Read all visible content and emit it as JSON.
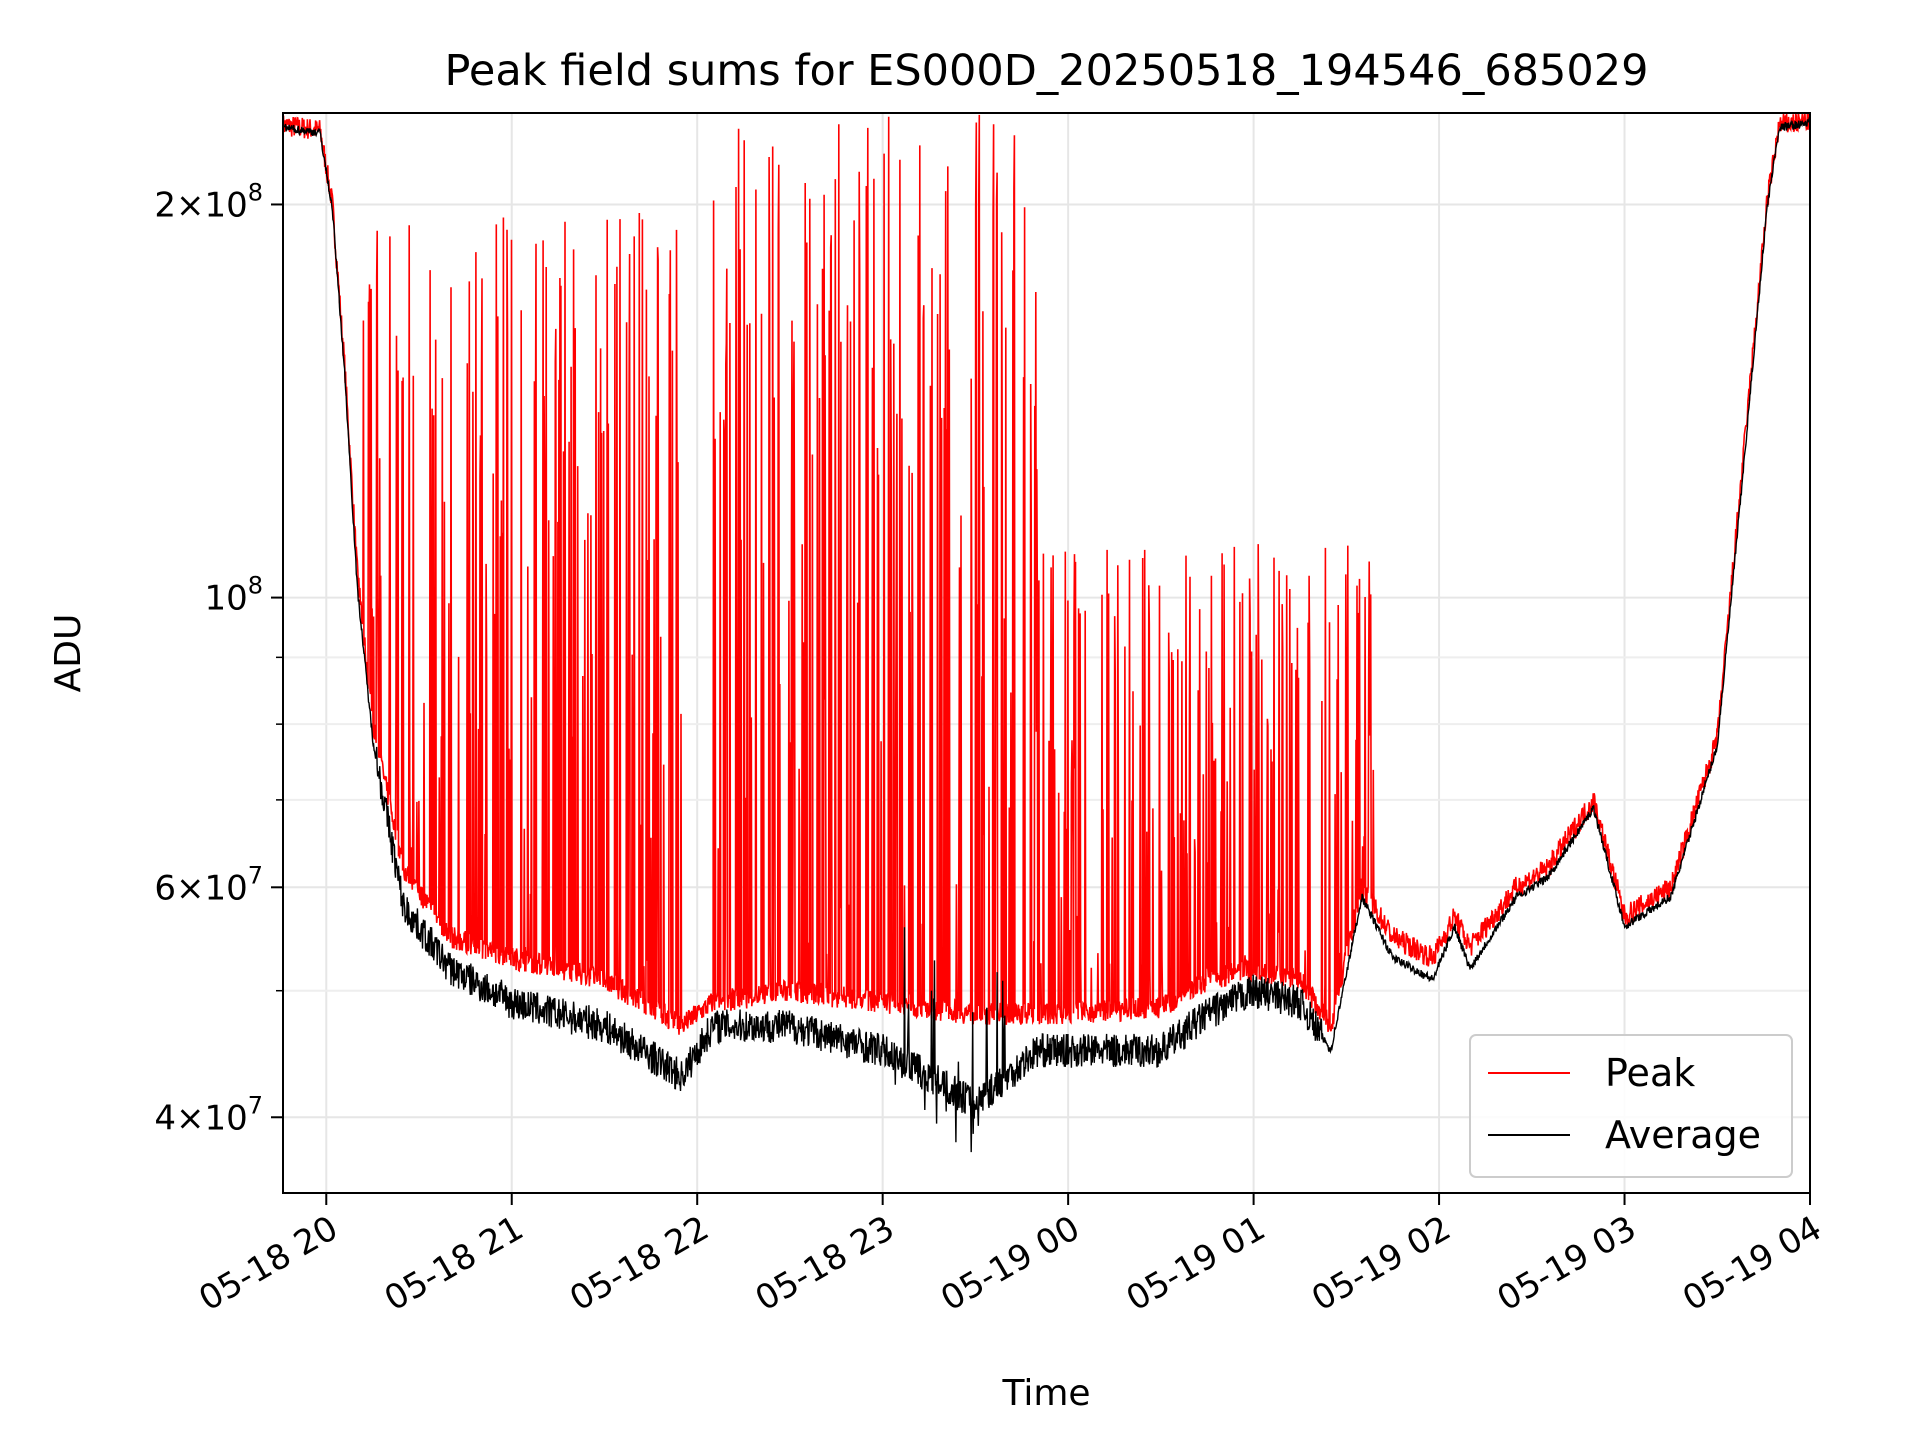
{
  "chart_data": {
    "type": "line",
    "title": "Peak field sums for ES000D_20250518_194546_685029",
    "xlabel": "Time",
    "ylabel": "ADU",
    "y_scale": "log",
    "ylim": [
      35000000,
      235000000
    ],
    "xlim": [
      "2025-05-18 19:46",
      "2025-05-19 04:00"
    ],
    "grid": true,
    "legend_position": "lower-right",
    "x_ticks": [
      "05-18 20",
      "05-18 21",
      "05-18 22",
      "05-18 23",
      "05-19 00",
      "05-19 01",
      "05-19 02",
      "05-19 03",
      "05-19 04"
    ],
    "y_tick_labels": [
      {
        "value": 40000000,
        "mantissa": "4",
        "exponent": "7"
      },
      {
        "value": 60000000,
        "mantissa": "6",
        "exponent": "7"
      },
      {
        "value": 100000000,
        "mantissa": "",
        "exponent": "8"
      },
      {
        "value": 200000000,
        "mantissa": "2",
        "exponent": "8"
      }
    ],
    "series": [
      {
        "name": "Peak",
        "color": "#ff0000",
        "baseline": [
          [
            "2025-05-18 19:46",
            230000000
          ],
          [
            "2025-05-18 19:58",
            228000000
          ],
          [
            "2025-05-18 20:02",
            200000000
          ],
          [
            "2025-05-18 20:06",
            150000000
          ],
          [
            "2025-05-18 20:10",
            105000000
          ],
          [
            "2025-05-18 20:15",
            80000000
          ],
          [
            "2025-05-18 20:25",
            62000000
          ],
          [
            "2025-05-18 20:40",
            55000000
          ],
          [
            "2025-05-18 21:00",
            53000000
          ],
          [
            "2025-05-18 21:30",
            51000000
          ],
          [
            "2025-05-18 21:55",
            47000000
          ],
          [
            "2025-05-18 22:05",
            49000000
          ],
          [
            "2025-05-18 22:30",
            50000000
          ],
          [
            "2025-05-18 23:00",
            49000000
          ],
          [
            "2025-05-18 23:30",
            48000000
          ],
          [
            "2025-05-18 23:50",
            48000000
          ],
          [
            "2025-05-19 00:30",
            48500000
          ],
          [
            "2025-05-19 00:45",
            51000000
          ],
          [
            "2025-05-19 01:00",
            52000000
          ],
          [
            "2025-05-19 01:15",
            51000000
          ],
          [
            "2025-05-19 01:25",
            47000000
          ],
          [
            "2025-05-19 01:35",
            60000000
          ],
          [
            "2025-05-19 01:45",
            55000000
          ],
          [
            "2025-05-19 01:58",
            53000000
          ],
          [
            "2025-05-19 02:05",
            57000000
          ],
          [
            "2025-05-19 02:10",
            54000000
          ],
          [
            "2025-05-19 02:25",
            60000000
          ],
          [
            "2025-05-19 02:35",
            62000000
          ],
          [
            "2025-05-19 02:50",
            70000000
          ],
          [
            "2025-05-19 03:00",
            57000000
          ],
          [
            "2025-05-19 03:15",
            60000000
          ],
          [
            "2025-05-19 03:30",
            78000000
          ],
          [
            "2025-05-19 03:38",
            125000000
          ],
          [
            "2025-05-19 03:46",
            200000000
          ],
          [
            "2025-05-19 03:50",
            230000000
          ],
          [
            "2025-05-19 04:00",
            232000000
          ]
        ],
        "spike_windows": [
          {
            "start": "2025-05-18 20:10",
            "end": "2025-05-18 21:55",
            "max": 200000000
          },
          {
            "start": "2025-05-18 22:05",
            "end": "2025-05-18 23:50",
            "max": 235000000
          },
          {
            "start": "2025-05-18 23:50",
            "end": "2025-05-19 01:40",
            "max": 110000000
          }
        ]
      },
      {
        "name": "Average",
        "color": "#000000",
        "baseline": [
          [
            "2025-05-18 19:46",
            229000000
          ],
          [
            "2025-05-18 19:58",
            227000000
          ],
          [
            "2025-05-18 20:02",
            198000000
          ],
          [
            "2025-05-18 20:06",
            148000000
          ],
          [
            "2025-05-18 20:10",
            102000000
          ],
          [
            "2025-05-18 20:15",
            78000000
          ],
          [
            "2025-05-18 20:25",
            58000000
          ],
          [
            "2025-05-18 20:40",
            52000000
          ],
          [
            "2025-05-18 21:00",
            49000000
          ],
          [
            "2025-05-18 21:30",
            47000000
          ],
          [
            "2025-05-18 21:55",
            43000000
          ],
          [
            "2025-05-18 22:05",
            47000000
          ],
          [
            "2025-05-18 22:30",
            47000000
          ],
          [
            "2025-05-18 23:00",
            45000000
          ],
          [
            "2025-05-18 23:30",
            41000000
          ],
          [
            "2025-05-18 23:50",
            45000000
          ],
          [
            "2025-05-19 00:30",
            45000000
          ],
          [
            "2025-05-19 00:45",
            48000000
          ],
          [
            "2025-05-19 01:00",
            50000000
          ],
          [
            "2025-05-19 01:15",
            49000000
          ],
          [
            "2025-05-19 01:25",
            45000000
          ],
          [
            "2025-05-19 01:35",
            59000000
          ],
          [
            "2025-05-19 01:45",
            53000000
          ],
          [
            "2025-05-19 01:58",
            51000000
          ],
          [
            "2025-05-19 02:05",
            56000000
          ],
          [
            "2025-05-19 02:10",
            52000000
          ],
          [
            "2025-05-19 02:25",
            59000000
          ],
          [
            "2025-05-19 02:35",
            61000000
          ],
          [
            "2025-05-19 02:50",
            69000000
          ],
          [
            "2025-05-19 03:00",
            56000000
          ],
          [
            "2025-05-19 03:15",
            59000000
          ],
          [
            "2025-05-19 03:30",
            77000000
          ],
          [
            "2025-05-19 03:38",
            122000000
          ],
          [
            "2025-05-19 03:46",
            198000000
          ],
          [
            "2025-05-19 03:50",
            229000000
          ],
          [
            "2025-05-19 04:00",
            231000000
          ]
        ]
      }
    ]
  }
}
